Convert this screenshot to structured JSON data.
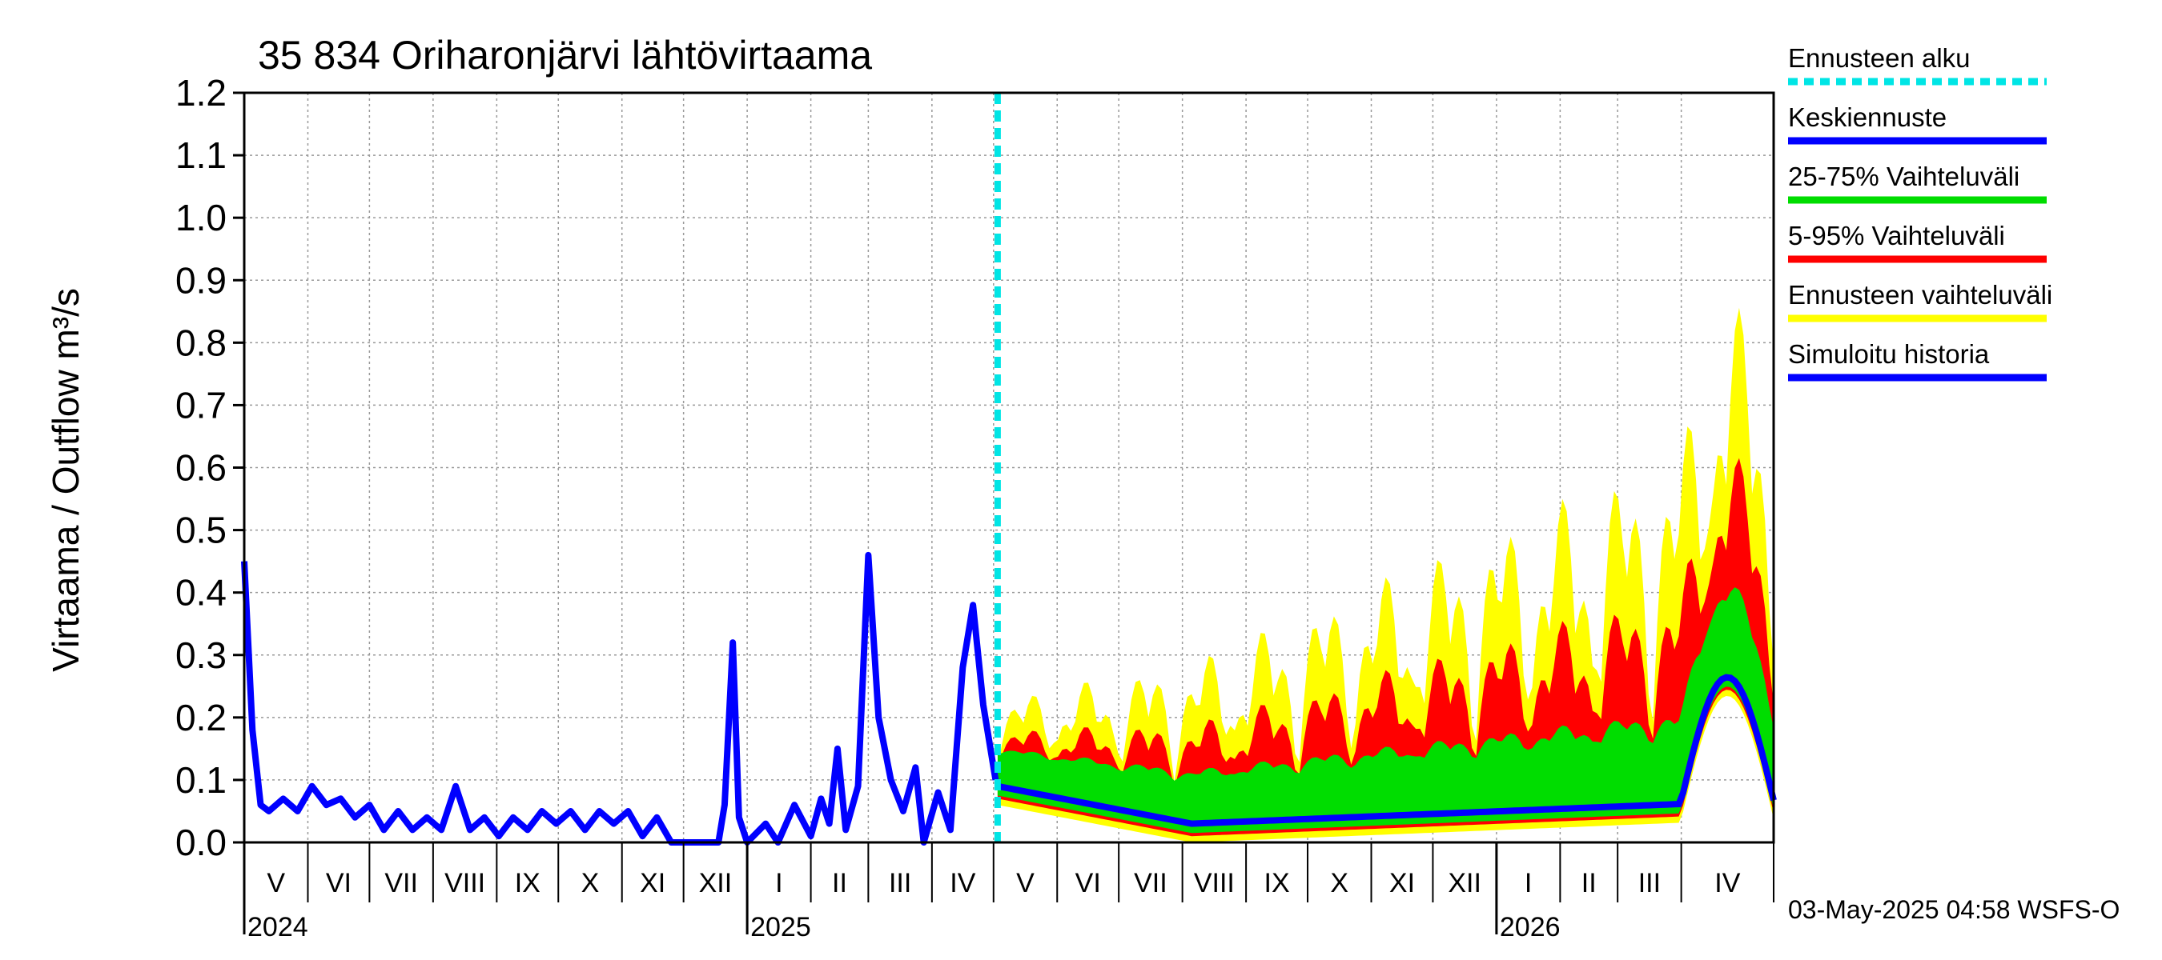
{
  "chart_data": {
    "type": "line",
    "title": "35 834 Oriharonjärvi lähtövirtaama",
    "ylabel": "Virtaama / Outflow    m³/s",
    "ylim": [
      0,
      1.2
    ],
    "y_ticks": [
      "0.0",
      "0.1",
      "0.2",
      "0.3",
      "0.4",
      "0.5",
      "0.6",
      "0.7",
      "0.8",
      "0.9",
      "1.0",
      "1.1",
      "1.2"
    ],
    "x_range": [
      "2024-05-01",
      "2026-05-16"
    ],
    "forecast_start": "2025-05-03",
    "months": [
      {
        "label": "V",
        "start": "2024-05-01"
      },
      {
        "label": "VI",
        "start": "2024-06-01"
      },
      {
        "label": "VII",
        "start": "2024-07-01"
      },
      {
        "label": "VIII",
        "start": "2024-08-01"
      },
      {
        "label": "IX",
        "start": "2024-09-01"
      },
      {
        "label": "X",
        "start": "2024-10-01"
      },
      {
        "label": "XI",
        "start": "2024-11-01"
      },
      {
        "label": "XII",
        "start": "2024-12-01"
      },
      {
        "label": "I",
        "start": "2025-01-01"
      },
      {
        "label": "II",
        "start": "2025-02-01"
      },
      {
        "label": "III",
        "start": "2025-03-01"
      },
      {
        "label": "IV",
        "start": "2025-04-01"
      },
      {
        "label": "V",
        "start": "2025-05-01"
      },
      {
        "label": "VI",
        "start": "2025-06-01"
      },
      {
        "label": "VII",
        "start": "2025-07-01"
      },
      {
        "label": "VIII",
        "start": "2025-08-01"
      },
      {
        "label": "IX",
        "start": "2025-09-01"
      },
      {
        "label": "X",
        "start": "2025-10-01"
      },
      {
        "label": "XI",
        "start": "2025-11-01"
      },
      {
        "label": "XII",
        "start": "2025-12-01"
      },
      {
        "label": "I",
        "start": "2026-01-01"
      },
      {
        "label": "II",
        "start": "2026-02-01"
      },
      {
        "label": "III",
        "start": "2026-03-01"
      },
      {
        "label": "IV",
        "start": "2026-04-01"
      }
    ],
    "years": [
      {
        "label": "2024",
        "at": "2024-05-01"
      },
      {
        "label": "2025",
        "at": "2025-01-01"
      },
      {
        "label": "2026",
        "at": "2026-01-01"
      }
    ],
    "legend": [
      {
        "label": "Ennusteen alku",
        "color": "#00e5e5",
        "style": "dashed"
      },
      {
        "label": "Keskiennuste",
        "color": "#0000ff",
        "style": "solid"
      },
      {
        "label": "25-75% Vaihteluväli",
        "color": "#00dd00",
        "style": "solid"
      },
      {
        "label": "5-95% Vaihteluväli",
        "color": "#ff0000",
        "style": "solid"
      },
      {
        "label": "Ennusteen vaihteluväli",
        "color": "#ffff00",
        "style": "solid"
      },
      {
        "label": "Simuloitu historia",
        "color": "#0000ff",
        "style": "solid"
      }
    ],
    "series": [
      {
        "name": "Simuloitu historia",
        "color": "#0000ff",
        "points": [
          [
            "2024-05-01",
            0.45
          ],
          [
            "2024-05-05",
            0.18
          ],
          [
            "2024-05-09",
            0.06
          ],
          [
            "2024-05-13",
            0.05
          ],
          [
            "2024-05-20",
            0.07
          ],
          [
            "2024-05-27",
            0.05
          ],
          [
            "2024-06-03",
            0.09
          ],
          [
            "2024-06-10",
            0.06
          ],
          [
            "2024-06-17",
            0.07
          ],
          [
            "2024-06-24",
            0.04
          ],
          [
            "2024-07-01",
            0.06
          ],
          [
            "2024-07-08",
            0.02
          ],
          [
            "2024-07-15",
            0.05
          ],
          [
            "2024-07-22",
            0.02
          ],
          [
            "2024-07-29",
            0.04
          ],
          [
            "2024-08-05",
            0.02
          ],
          [
            "2024-08-12",
            0.09
          ],
          [
            "2024-08-19",
            0.02
          ],
          [
            "2024-08-26",
            0.04
          ],
          [
            "2024-09-02",
            0.01
          ],
          [
            "2024-09-09",
            0.04
          ],
          [
            "2024-09-16",
            0.02
          ],
          [
            "2024-09-23",
            0.05
          ],
          [
            "2024-09-30",
            0.03
          ],
          [
            "2024-10-07",
            0.05
          ],
          [
            "2024-10-14",
            0.02
          ],
          [
            "2024-10-21",
            0.05
          ],
          [
            "2024-10-28",
            0.03
          ],
          [
            "2024-11-04",
            0.05
          ],
          [
            "2024-11-11",
            0.01
          ],
          [
            "2024-11-18",
            0.04
          ],
          [
            "2024-11-25",
            0.0
          ],
          [
            "2024-12-10",
            0.0
          ],
          [
            "2024-12-18",
            0.0
          ],
          [
            "2024-12-21",
            0.06
          ],
          [
            "2024-12-25",
            0.32
          ],
          [
            "2024-12-28",
            0.04
          ],
          [
            "2025-01-01",
            0.0
          ],
          [
            "2025-01-10",
            0.03
          ],
          [
            "2025-01-16",
            0.0
          ],
          [
            "2025-01-24",
            0.06
          ],
          [
            "2025-02-01",
            0.01
          ],
          [
            "2025-02-06",
            0.07
          ],
          [
            "2025-02-10",
            0.03
          ],
          [
            "2025-02-14",
            0.15
          ],
          [
            "2025-02-18",
            0.02
          ],
          [
            "2025-02-24",
            0.09
          ],
          [
            "2025-03-01",
            0.46
          ],
          [
            "2025-03-06",
            0.2
          ],
          [
            "2025-03-12",
            0.1
          ],
          [
            "2025-03-18",
            0.05
          ],
          [
            "2025-03-24",
            0.12
          ],
          [
            "2025-03-28",
            0.0
          ],
          [
            "2025-04-04",
            0.08
          ],
          [
            "2025-04-10",
            0.02
          ],
          [
            "2025-04-16",
            0.28
          ],
          [
            "2025-04-21",
            0.38
          ],
          [
            "2025-04-26",
            0.22
          ],
          [
            "2025-05-02",
            0.1
          ]
        ]
      },
      {
        "name": "Keskiennuste",
        "color": "#0000ff",
        "points": []
      }
    ]
  },
  "footer": "03-May-2025 04:58 WSFS-O"
}
